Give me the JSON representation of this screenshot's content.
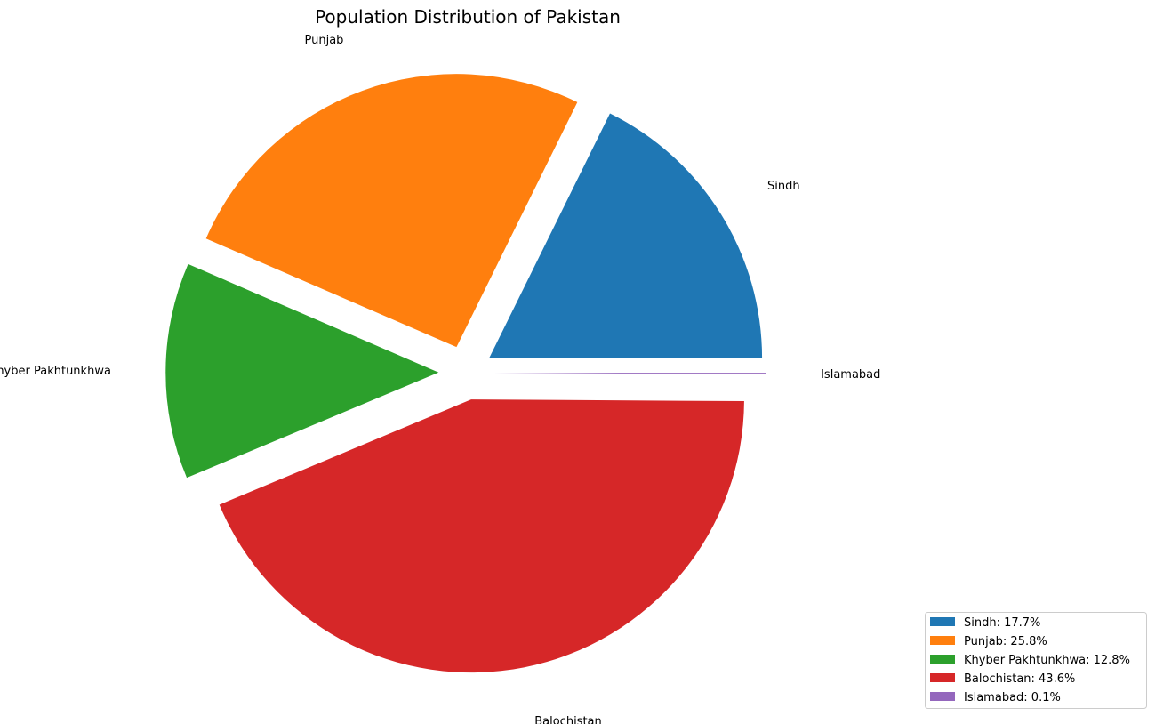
{
  "chart_data": {
    "type": "pie",
    "title": "Population Distribution of Pakistan",
    "slices": [
      {
        "label": "Sindh",
        "value": 17.7,
        "legend": "Sindh: 17.7%",
        "color": "#1f77b4",
        "explode": 0.1
      },
      {
        "label": "Punjab",
        "value": 25.8,
        "legend": "Punjab: 25.8%",
        "color": "#ff7f0e",
        "explode": 0.1
      },
      {
        "label": "Khyber Pakhtunkhwa",
        "value": 12.8,
        "legend": "Khyber Pakhtunkhwa: 12.8%",
        "color": "#2ca02c",
        "explode": 0.1
      },
      {
        "label": "Balochistan",
        "value": 43.6,
        "legend": "Balochistan: 43.6%",
        "color": "#d62728",
        "explode": 0.1
      },
      {
        "label": "Islamabad",
        "value": 0.1,
        "legend": "Islamabad: 0.1%",
        "color": "#9467bd",
        "explode": 0.1
      }
    ],
    "start_angle": 0,
    "direction": "counterclockwise",
    "legend_position": "lower-right"
  }
}
